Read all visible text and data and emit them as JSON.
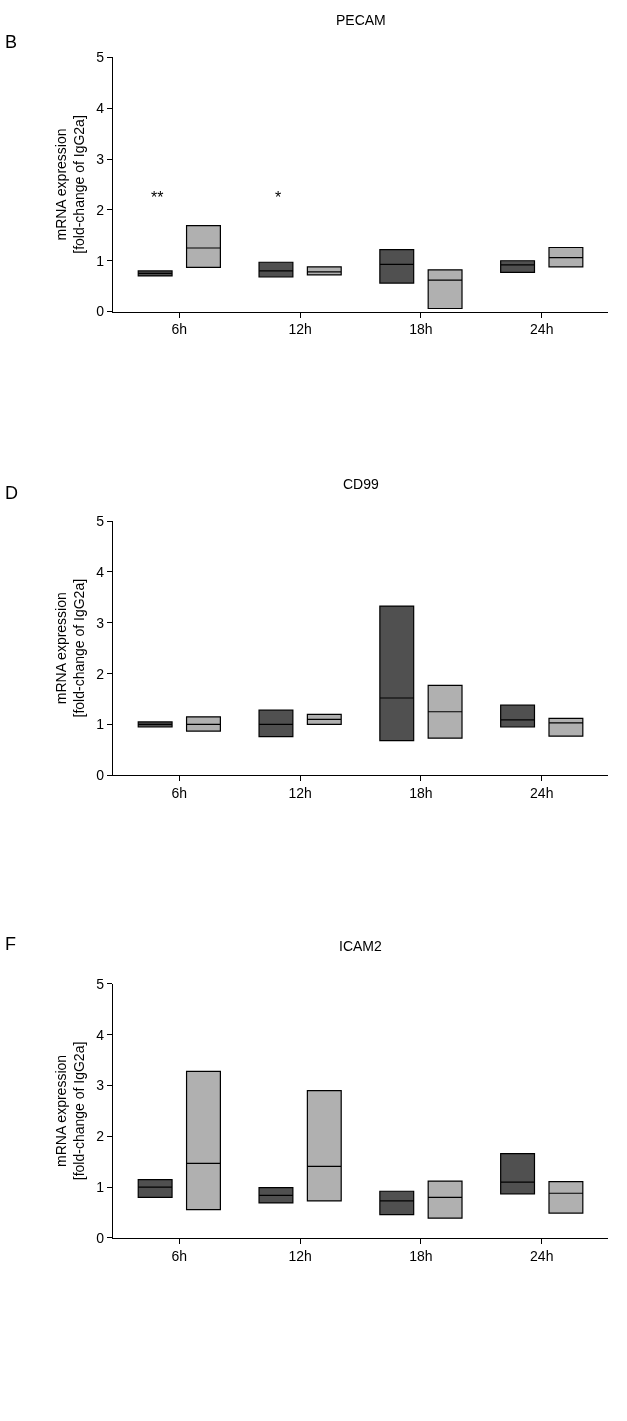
{
  "chart_data": [
    {
      "type": "box",
      "title": "PECAM",
      "ylabel": "mRNA expression\n[fold-change of IgG2a]",
      "categories": [
        "6h",
        "12h",
        "18h",
        "24h"
      ],
      "ylim": [
        0,
        5
      ],
      "yticks": [
        0,
        1,
        2,
        3,
        4,
        5
      ],
      "annotations": [
        "B",
        "**",
        "*"
      ],
      "series": [
        {
          "color": "#505050",
          "boxes": [
            {
              "low": 0.7,
              "q1": 0.7,
              "median": 0.75,
              "q3": 0.8,
              "high": 0.8
            },
            {
              "low": 0.68,
              "q1": 0.68,
              "median": 0.8,
              "q3": 0.97,
              "high": 0.97
            },
            {
              "low": 0.56,
              "q1": 0.56,
              "median": 0.93,
              "q3": 1.22,
              "high": 1.22
            },
            {
              "low": 0.77,
              "q1": 0.77,
              "median": 0.92,
              "q3": 1.0,
              "high": 1.0
            }
          ]
        },
        {
          "color": "#b0b0b0",
          "boxes": [
            {
              "low": 0.87,
              "q1": 0.87,
              "median": 1.25,
              "q3": 1.69,
              "high": 1.69
            },
            {
              "low": 0.72,
              "q1": 0.72,
              "median": 0.78,
              "q3": 0.88,
              "high": 0.88
            },
            {
              "low": 0.06,
              "q1": 0.06,
              "median": 0.62,
              "q3": 0.82,
              "high": 0.82
            },
            {
              "low": 0.88,
              "q1": 0.88,
              "median": 1.06,
              "q3": 1.26,
              "high": 1.26
            }
          ]
        }
      ]
    },
    {
      "type": "box",
      "title": "CD99",
      "ylabel": "mRNA expression\n[fold-change of IgG2a]",
      "categories": [
        "6h",
        "12h",
        "18h",
        "24h"
      ],
      "ylim": [
        0,
        5
      ],
      "yticks": [
        0,
        1,
        2,
        3,
        4,
        5
      ],
      "annotations": [
        "D"
      ],
      "series": [
        {
          "color": "#505050",
          "boxes": [
            {
              "low": 0.95,
              "q1": 0.95,
              "median": 1.0,
              "q3": 1.05,
              "high": 1.05
            },
            {
              "low": 0.76,
              "q1": 0.76,
              "median": 1.0,
              "q3": 1.28,
              "high": 1.28
            },
            {
              "low": 0.68,
              "q1": 0.68,
              "median": 1.52,
              "q3": 3.33,
              "high": 3.33
            },
            {
              "low": 0.95,
              "q1": 0.95,
              "median": 1.09,
              "q3": 1.38,
              "high": 1.38
            }
          ]
        },
        {
          "color": "#b0b0b0",
          "boxes": [
            {
              "low": 0.87,
              "q1": 0.87,
              "median": 1.0,
              "q3": 1.15,
              "high": 1.15
            },
            {
              "low": 1.0,
              "q1": 1.0,
              "median": 1.1,
              "q3": 1.2,
              "high": 1.2
            },
            {
              "low": 0.73,
              "q1": 0.73,
              "median": 1.25,
              "q3": 1.77,
              "high": 1.77
            },
            {
              "low": 0.77,
              "q1": 0.77,
              "median": 1.03,
              "q3": 1.12,
              "high": 1.12
            }
          ]
        }
      ]
    },
    {
      "type": "box",
      "title": "ICAM2",
      "ylabel": "mRNA expression\n[fold-change of IgG2a]",
      "categories": [
        "6h",
        "12h",
        "18h",
        "24h"
      ],
      "ylim": [
        0,
        5
      ],
      "yticks": [
        0,
        1,
        2,
        3,
        4,
        5
      ],
      "annotations": [
        "F"
      ],
      "series": [
        {
          "color": "#505050",
          "boxes": [
            {
              "low": 0.8,
              "q1": 0.8,
              "median": 1.0,
              "q3": 1.15,
              "high": 1.15
            },
            {
              "low": 0.69,
              "q1": 0.69,
              "median": 0.84,
              "q3": 0.99,
              "high": 0.99
            },
            {
              "low": 0.46,
              "q1": 0.46,
              "median": 0.73,
              "q3": 0.92,
              "high": 0.92
            },
            {
              "low": 0.87,
              "q1": 0.87,
              "median": 1.1,
              "q3": 1.66,
              "high": 1.66
            }
          ]
        },
        {
          "color": "#b0b0b0",
          "boxes": [
            {
              "low": 0.56,
              "q1": 0.56,
              "median": 1.47,
              "q3": 3.28,
              "high": 3.28
            },
            {
              "low": 0.73,
              "q1": 0.73,
              "median": 1.41,
              "q3": 2.9,
              "high": 2.9
            },
            {
              "low": 0.39,
              "q1": 0.39,
              "median": 0.8,
              "q3": 1.12,
              "high": 1.12
            },
            {
              "low": 0.49,
              "q1": 0.49,
              "median": 0.88,
              "q3": 1.11,
              "high": 1.11
            }
          ]
        }
      ]
    }
  ]
}
